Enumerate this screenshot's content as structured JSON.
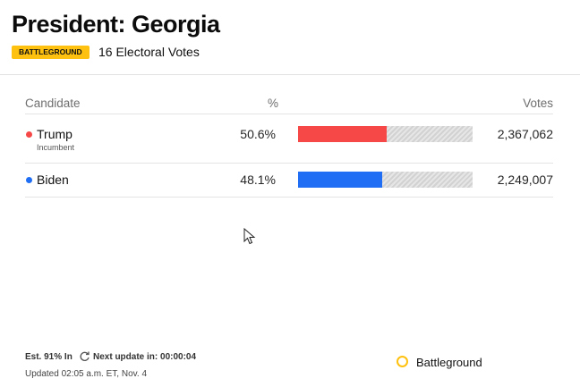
{
  "header": {
    "title": "President: Georgia",
    "badge": "BATTLEGROUND",
    "electoral_votes": "16 Electoral Votes"
  },
  "table": {
    "columns": [
      "Candidate",
      "%",
      "Votes"
    ],
    "rows": [
      {
        "name": "Trump",
        "note": "Incumbent",
        "color": "#f74848",
        "pct": {
          "value": 50.6,
          "label": "50.6%"
        },
        "votes": "2,367,062"
      },
      {
        "name": "Biden",
        "color": "#1f6ef4",
        "pct": {
          "value": 48.1,
          "label": "48.1%"
        },
        "votes": "2,249,007"
      }
    ]
  },
  "footer": {
    "estimate": "Est. 91% In",
    "next_update": "Next update in: 00:00:04",
    "updated": "Updated 02:05 a.m. ET, Nov. 4"
  },
  "legend": {
    "label": "Battleground"
  }
}
